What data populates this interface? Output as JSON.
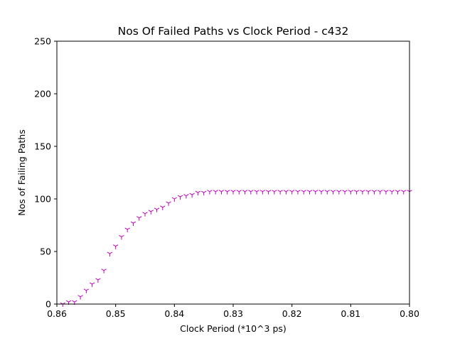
{
  "chart_data": {
    "type": "scatter",
    "title": "Nos Of Failed Paths vs Clock Period - c432",
    "xlabel": "Clock Period (*10^3 ps)",
    "ylabel": "Nos of Failing Paths",
    "xlim": [
      0.86,
      0.8
    ],
    "ylim": [
      0,
      250
    ],
    "x_ticks": [
      "0.86",
      "0.85",
      "0.84",
      "0.83",
      "0.82",
      "0.81",
      "0.80"
    ],
    "y_ticks": [
      "0",
      "50",
      "100",
      "150",
      "200",
      "250"
    ],
    "x_inverted": true,
    "grid": false,
    "marker": "tri_down",
    "series": [
      {
        "color": "#bf00bf",
        "x": [
          0.859,
          0.858,
          0.857,
          0.856,
          0.855,
          0.854,
          0.853,
          0.852,
          0.851,
          0.85,
          0.849,
          0.848,
          0.847,
          0.846,
          0.845,
          0.844,
          0.843,
          0.842,
          0.841,
          0.84,
          0.839,
          0.838,
          0.837,
          0.836,
          0.835,
          0.834,
          0.833,
          0.832,
          0.831,
          0.83,
          0.829,
          0.828,
          0.827,
          0.826,
          0.825,
          0.824,
          0.823,
          0.822,
          0.821,
          0.82,
          0.819,
          0.818,
          0.817,
          0.816,
          0.815,
          0.814,
          0.813,
          0.812,
          0.811,
          0.81,
          0.809,
          0.808,
          0.807,
          0.806,
          0.805,
          0.804,
          0.803,
          0.802,
          0.801,
          0.8
        ],
        "y": [
          0,
          2,
          2,
          7,
          13,
          19,
          23,
          32,
          48,
          55,
          64,
          71,
          77,
          82,
          86,
          88,
          90,
          92,
          96,
          100,
          102,
          103,
          104,
          106,
          106,
          107,
          107,
          107,
          107,
          107,
          107,
          107,
          107,
          107,
          107,
          107,
          107,
          107,
          107,
          107,
          107,
          107,
          107,
          107,
          107,
          107,
          107,
          107,
          107,
          107,
          107,
          107,
          107,
          107,
          107,
          107,
          107,
          107,
          107,
          107
        ]
      }
    ]
  }
}
